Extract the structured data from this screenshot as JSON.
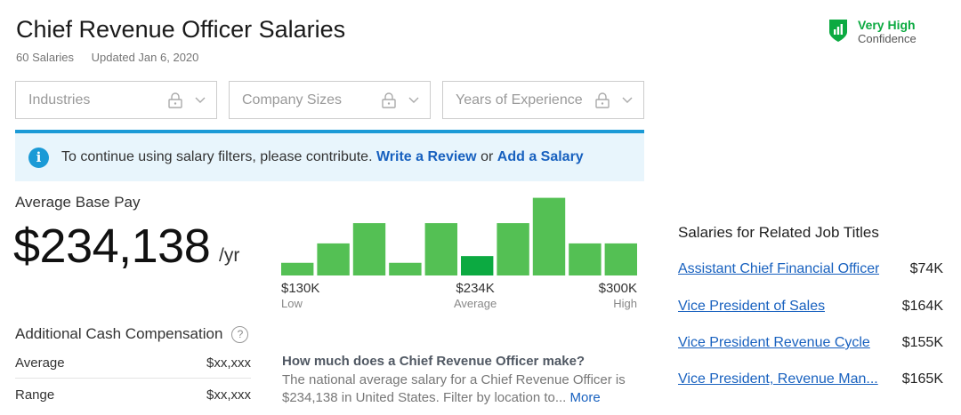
{
  "header": {
    "title": "Chief Revenue Officer Salaries",
    "salary_count": "60 Salaries",
    "updated": "Updated Jan 6, 2020"
  },
  "confidence": {
    "level": "Very High",
    "label": "Confidence",
    "color": "#0caa41"
  },
  "filters": [
    {
      "label": "Industries",
      "icon": "lock-icon"
    },
    {
      "label": "Company Sizes",
      "icon": "lock-icon"
    },
    {
      "label": "Years of Experience",
      "icon": "lock-icon"
    }
  ],
  "banner": {
    "text": "To continue using salary filters, please contribute.",
    "link1": "Write a Review",
    "or": "or",
    "link2": "Add a Salary"
  },
  "average": {
    "label": "Average Base Pay",
    "value": "$234,138",
    "unit": "/yr"
  },
  "chart_data": {
    "type": "bar",
    "title": "",
    "relative_heights": [
      0.15,
      0.38,
      0.62,
      0.15,
      0.62,
      0.23,
      0.62,
      0.92,
      0.38,
      0.38
    ],
    "highlight_index": 5,
    "color": "#54c054",
    "highlight_color": "#0caa41",
    "axis": {
      "low": {
        "value": "$130K",
        "label": "Low"
      },
      "avg": {
        "value": "$234K",
        "label": "Average"
      },
      "high": {
        "value": "$300K",
        "label": "High"
      }
    }
  },
  "additional_cash": {
    "title": "Additional Cash Compensation",
    "rows": [
      {
        "label": "Average",
        "value": "$xx,xxx"
      },
      {
        "label": "Range",
        "value": "$xx,xxx"
      }
    ]
  },
  "faq": {
    "question": "How much does a Chief Revenue Officer make?",
    "answer": "The national average salary for a Chief Revenue Officer is $234,138 in United States. Filter by location to...",
    "more": "More"
  },
  "related": {
    "title": "Salaries for Related Job Titles",
    "items": [
      {
        "label": "Assistant Chief Financial Officer",
        "value": "$74K"
      },
      {
        "label": "Vice President of Sales",
        "value": "$164K"
      },
      {
        "label": "Vice President Revenue Cycle",
        "value": "$155K"
      },
      {
        "label": "Vice President, Revenue Man...",
        "value": "$165K"
      }
    ]
  }
}
